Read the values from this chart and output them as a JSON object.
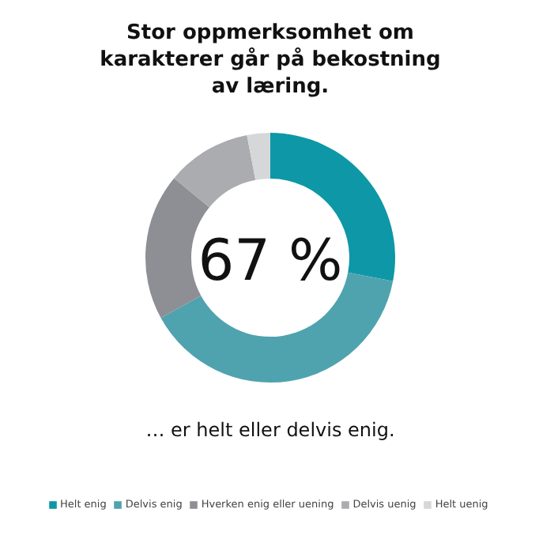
{
  "chart_data": {
    "type": "donut",
    "title": "Stor oppmerksomhet om karakterer går på bekostning av læring.",
    "categories": [
      "Helt enig",
      "Delvis enig",
      "Hverken enig eller uening",
      "Delvis uenig",
      "Helt uenig"
    ],
    "values": [
      28,
      39,
      19,
      11,
      3
    ],
    "colors": [
      "#0e97a6",
      "#4fa3ae",
      "#8e8f94",
      "#abacb0",
      "#d6d7d9"
    ],
    "annotations": [
      "67 %",
      "… er helt eller delvis enig."
    ],
    "legend": "bottom"
  }
}
